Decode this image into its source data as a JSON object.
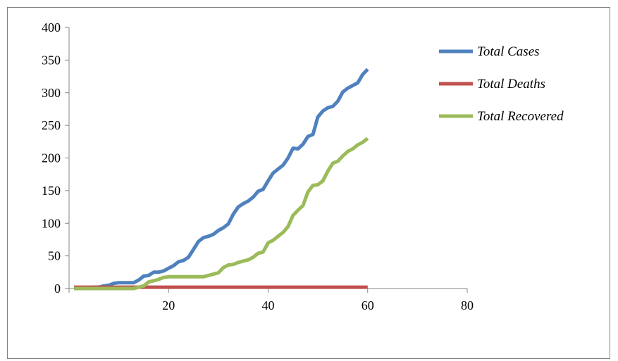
{
  "chart_data": {
    "type": "line",
    "title": "",
    "xlabel": "",
    "ylabel": "",
    "xlim": [
      0,
      80
    ],
    "ylim": [
      0,
      400
    ],
    "x_ticks": [
      20,
      40,
      60,
      80
    ],
    "y_ticks": [
      0,
      50,
      100,
      150,
      200,
      250,
      300,
      350,
      400
    ],
    "grid": false,
    "legend_position": "top-right",
    "series": [
      {
        "name": "Total Cases",
        "color": "#4F81BD",
        "x": [
          1,
          2,
          3,
          4,
          5,
          6,
          7,
          8,
          9,
          10,
          11,
          12,
          13,
          14,
          15,
          16,
          17,
          18,
          19,
          20,
          21,
          22,
          23,
          24,
          25,
          26,
          27,
          28,
          29,
          30,
          31,
          32,
          33,
          34,
          35,
          36,
          37,
          38,
          39,
          40,
          41,
          42,
          43,
          44,
          45,
          46,
          47,
          48,
          49,
          50,
          51,
          52,
          53,
          54,
          55,
          56,
          57,
          58,
          59,
          60
        ],
        "y": [
          0,
          0,
          0,
          0,
          2,
          2,
          4,
          5,
          8,
          9,
          9,
          9,
          9,
          13,
          19,
          20,
          25,
          25,
          27,
          31,
          35,
          41,
          43,
          48,
          60,
          72,
          78,
          80,
          83,
          89,
          93,
          99,
          114,
          125,
          130,
          134,
          140,
          149,
          152,
          165,
          177,
          183,
          189,
          200,
          215,
          214,
          221,
          233,
          236,
          263,
          272,
          277,
          279,
          287,
          301,
          307,
          311,
          315,
          328,
          336
        ]
      },
      {
        "name": "Total Deaths",
        "color": "#C0504D",
        "x": [
          1,
          60
        ],
        "y": [
          2,
          2
        ]
      },
      {
        "name": "Total Recovered",
        "color": "#9BBB59",
        "x": [
          1,
          2,
          3,
          4,
          5,
          6,
          7,
          8,
          9,
          10,
          11,
          12,
          13,
          14,
          15,
          16,
          17,
          18,
          19,
          20,
          21,
          22,
          23,
          24,
          25,
          26,
          27,
          28,
          29,
          30,
          31,
          32,
          33,
          34,
          35,
          36,
          37,
          38,
          39,
          40,
          41,
          42,
          43,
          44,
          45,
          46,
          47,
          48,
          49,
          50,
          51,
          52,
          53,
          54,
          55,
          56,
          57,
          58,
          59,
          60
        ],
        "y": [
          0,
          0,
          0,
          0,
          0,
          0,
          0,
          0,
          0,
          0,
          0,
          0,
          0,
          2,
          4,
          10,
          12,
          14,
          17,
          18,
          18,
          18,
          18,
          18,
          18,
          18,
          18,
          20,
          22,
          24,
          32,
          36,
          37,
          40,
          42,
          44,
          48,
          54,
          56,
          70,
          74,
          80,
          86,
          95,
          112,
          120,
          127,
          148,
          158,
          159,
          165,
          180,
          192,
          195,
          203,
          210,
          214,
          220,
          224,
          230
        ]
      }
    ]
  }
}
